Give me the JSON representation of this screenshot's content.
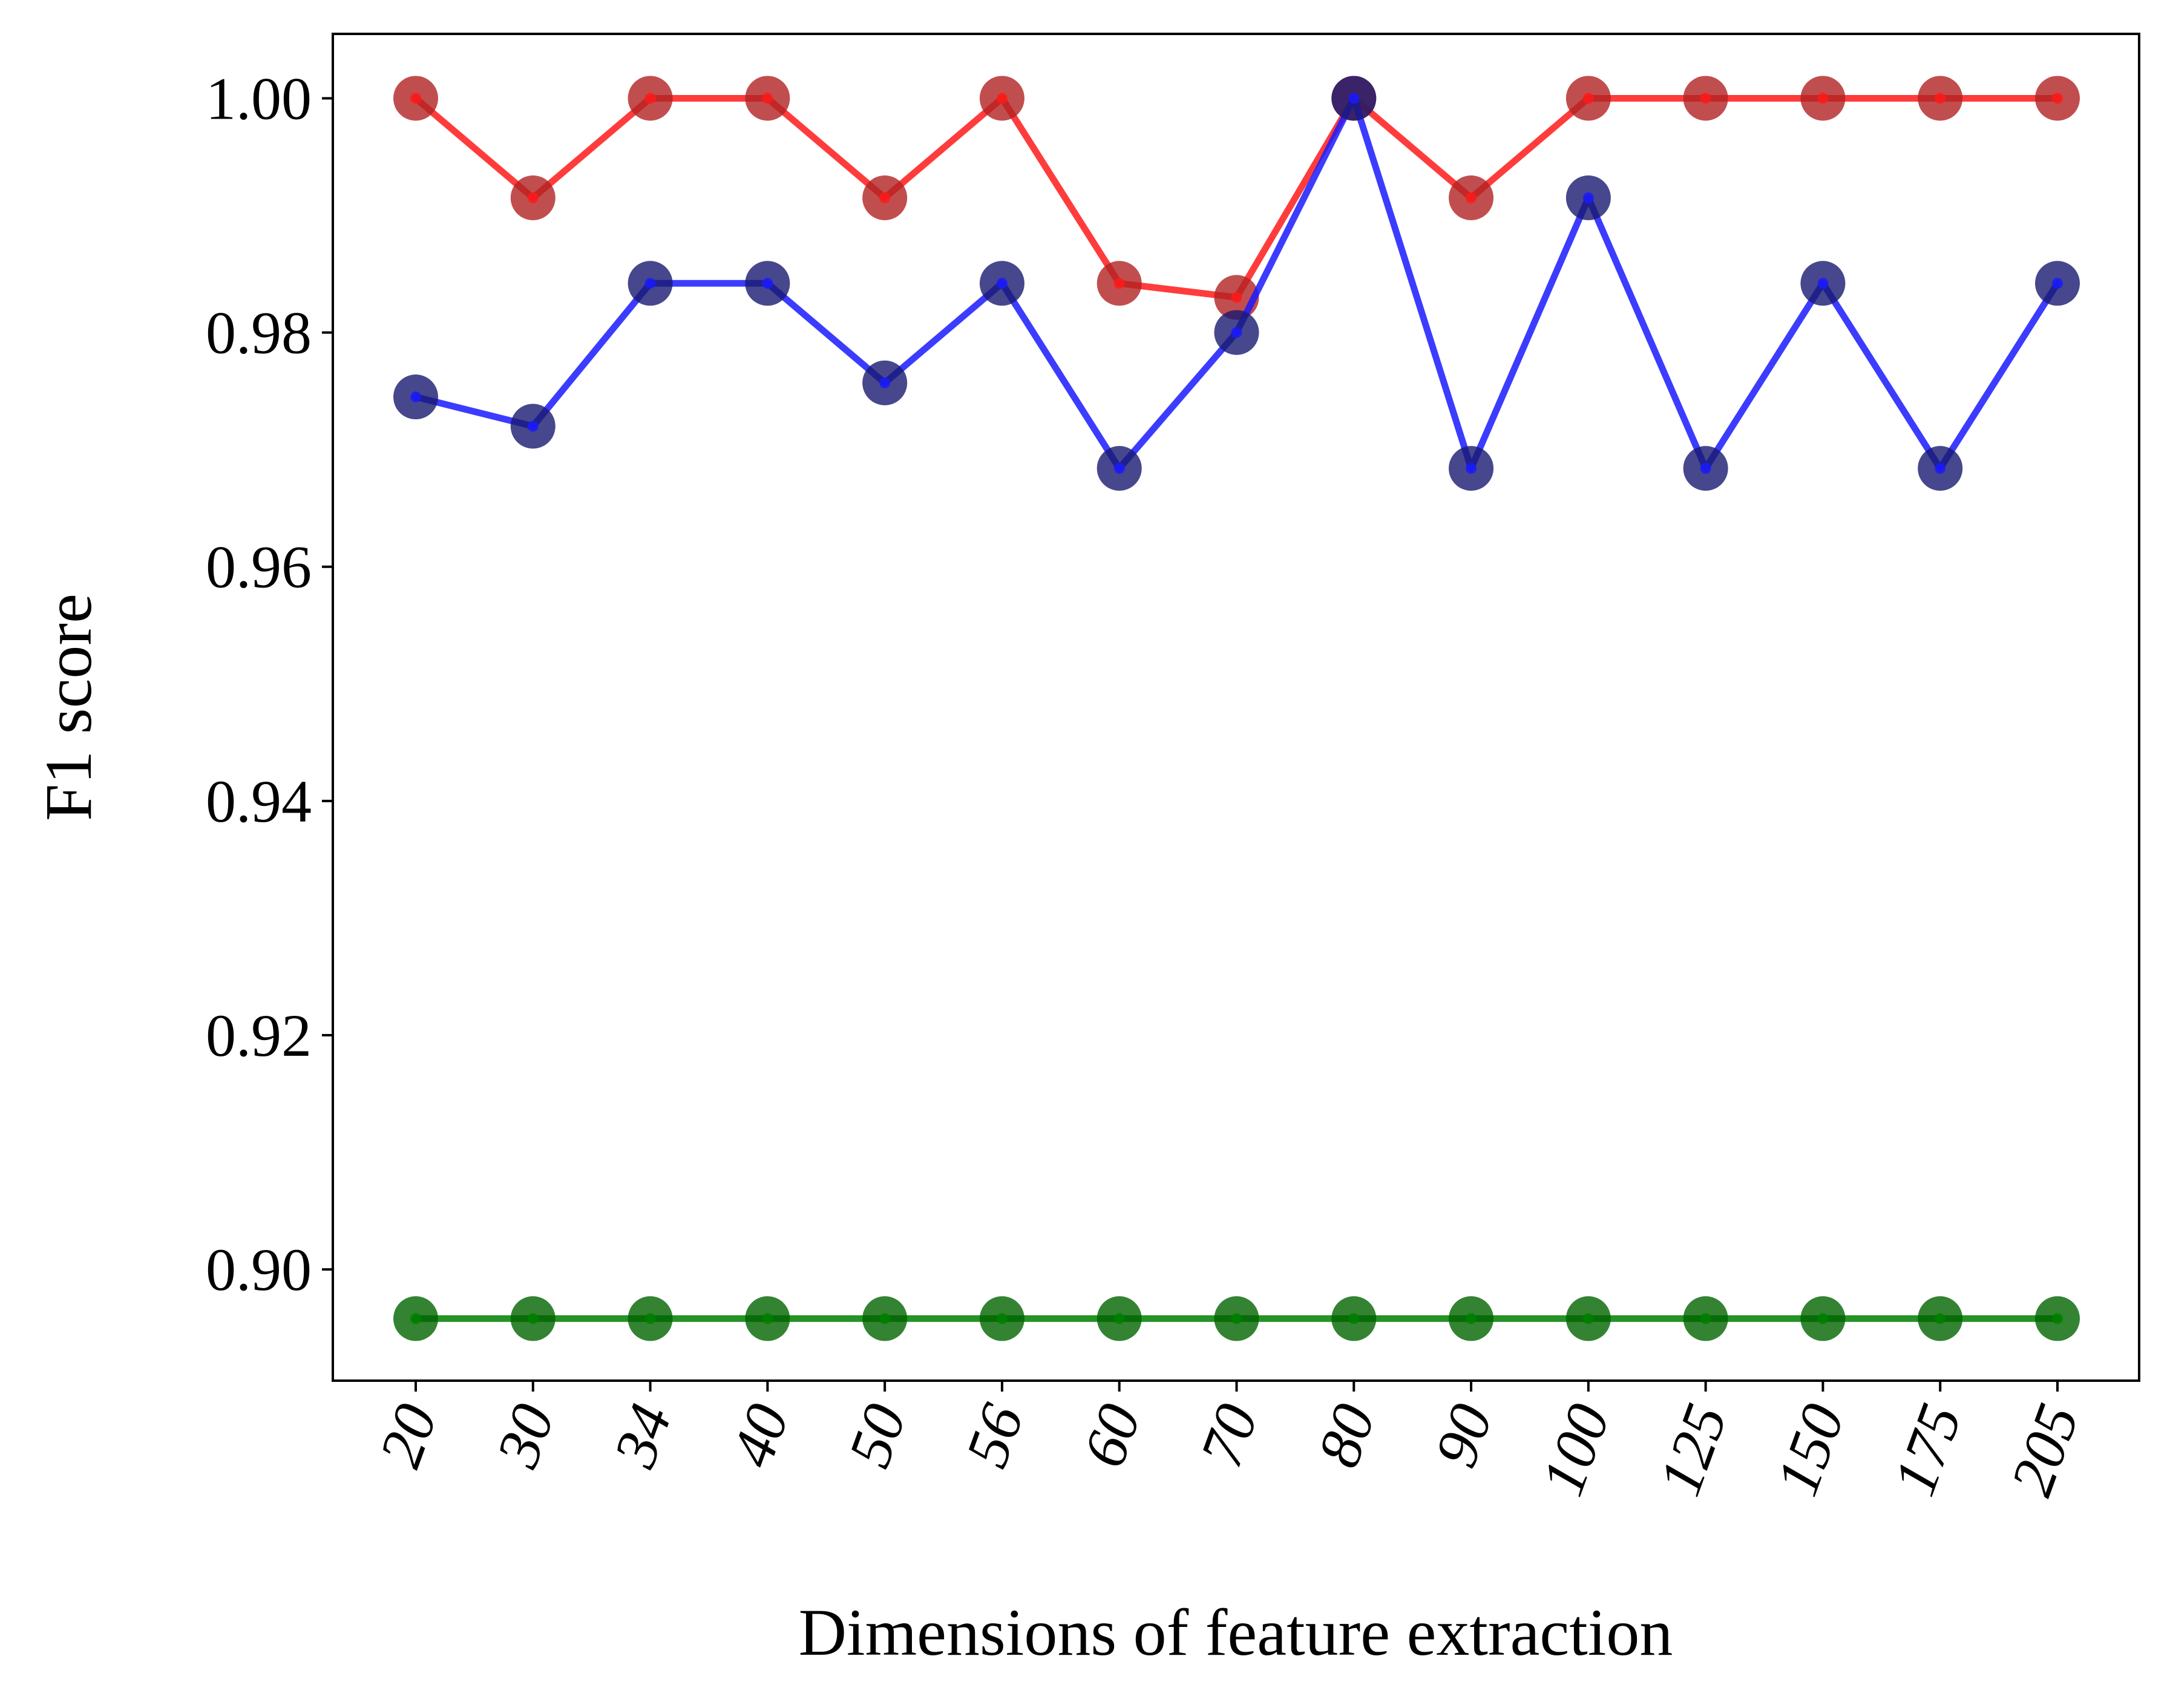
{
  "chart_data": {
    "type": "line",
    "title": "",
    "xlabel": "Dimensions of feature extraction",
    "ylabel": "F1 score",
    "categories": [
      "20",
      "30",
      "34",
      "40",
      "50",
      "56",
      "60",
      "70",
      "80",
      "90",
      "100",
      "125",
      "150",
      "175",
      "205"
    ],
    "ylim": [
      0.8905,
      1.0055
    ],
    "yticks": [
      0.9,
      0.92,
      0.94,
      0.96,
      0.98,
      1.0
    ],
    "ytick_labels": [
      "0.90",
      "0.92",
      "0.94",
      "0.96",
      "0.98",
      "1.00"
    ],
    "grid": false,
    "legend": "none",
    "series": [
      {
        "line_color": "#ff1a1a",
        "marker_color": "#b22222",
        "values": [
          1.0,
          0.9915,
          1.0,
          1.0,
          0.9915,
          1.0,
          0.9842,
          0.983,
          1.0,
          0.9915,
          1.0,
          1.0,
          1.0,
          1.0,
          1.0
        ]
      },
      {
        "line_color": "#1a1aff",
        "marker_color": "#191970",
        "values": [
          0.9745,
          0.972,
          0.9842,
          0.9842,
          0.9757,
          0.9842,
          0.9684,
          0.98,
          1.0,
          0.9684,
          0.9915,
          0.9684,
          0.9842,
          0.9684,
          0.9842
        ]
      },
      {
        "line_color": "#008000",
        "marker_color": "#006400",
        "values": [
          0.8958,
          0.8958,
          0.8958,
          0.8958,
          0.8958,
          0.8958,
          0.8958,
          0.8958,
          0.8958,
          0.8958,
          0.8958,
          0.8958,
          0.8958,
          0.8958,
          0.8958
        ]
      }
    ]
  }
}
